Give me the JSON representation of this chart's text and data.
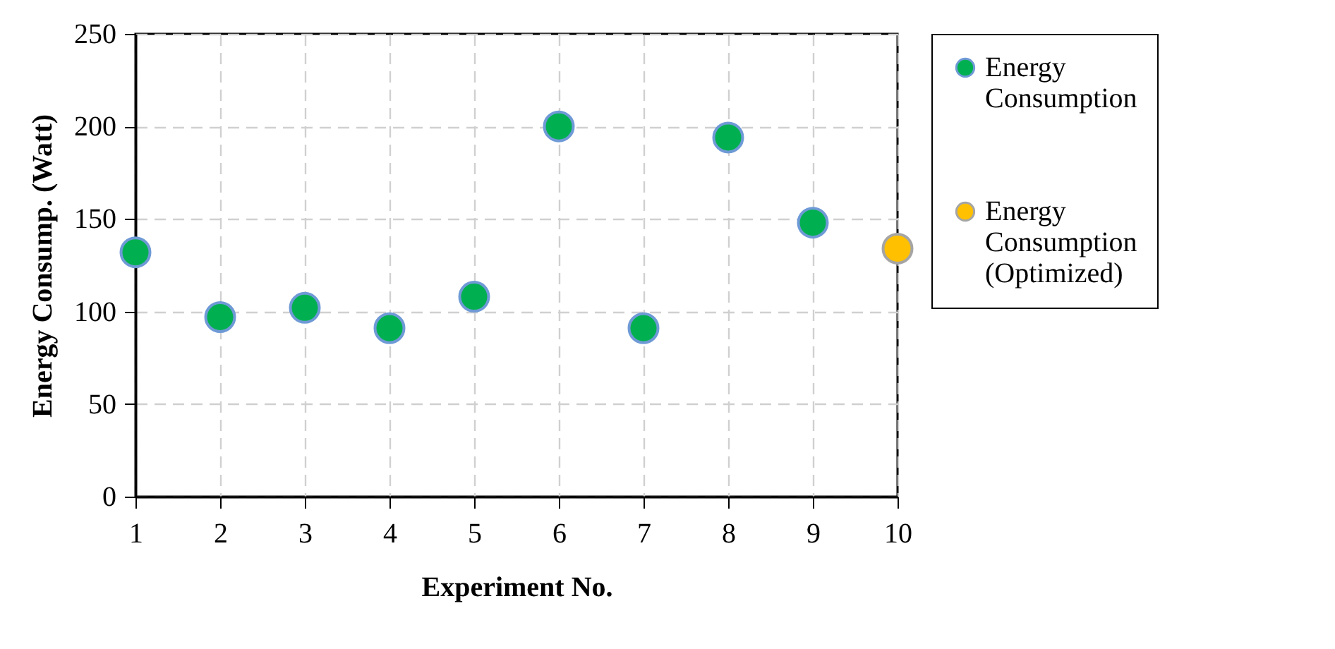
{
  "chart_data": {
    "type": "scatter",
    "xlabel": "Experiment No.",
    "ylabel": "Energy Consump. (Watt)",
    "xlim": [
      1,
      10
    ],
    "xticks": [
      1,
      2,
      3,
      4,
      5,
      6,
      7,
      8,
      9,
      10
    ],
    "ylim": [
      0,
      250
    ],
    "yticks": [
      0,
      50,
      100,
      150,
      200,
      250
    ],
    "grid": true,
    "legend": "right",
    "marker": "circle",
    "series": [
      {
        "name": "Energy Consumption",
        "color": "#00b050",
        "x": [
          1,
          2,
          3,
          4,
          5,
          6,
          7,
          8,
          9
        ],
        "values": [
          132,
          97,
          102,
          91,
          108,
          200,
          91,
          194,
          148
        ]
      },
      {
        "name": "Energy Consumption (Optimized)",
        "color": "#ffc000",
        "x": [
          10
        ],
        "values": [
          134
        ]
      }
    ]
  }
}
